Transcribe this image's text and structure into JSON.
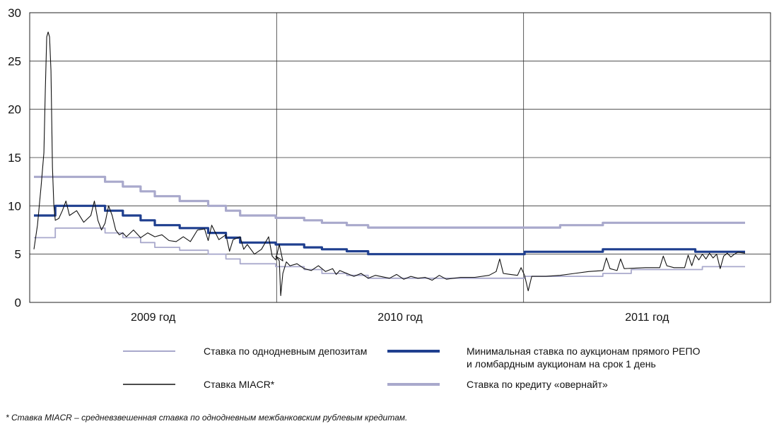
{
  "chart_data": {
    "type": "line",
    "ylim": [
      0,
      30
    ],
    "yticks": [
      0,
      5,
      10,
      15,
      20,
      25,
      30
    ],
    "year_labels": [
      "2009 год",
      "2010 год",
      "2011 год"
    ],
    "grid": true,
    "legend": [
      "Ставка по однодневным депозитам",
      "Минимальная ставка по аукционам прямого РЕПО и ломбардным аукционам на срок 1 день",
      "Ставка MIACR*",
      "Ставка по кредиту «овернайт»"
    ],
    "series": [
      {
        "name": "Ставка по однодневным депозитам",
        "color": "#a9a9cc",
        "points": [
          [
            0.0,
            6.7
          ],
          [
            0.03,
            6.7
          ],
          [
            0.03,
            7.7
          ],
          [
            0.1,
            7.7
          ],
          [
            0.1,
            7.2
          ],
          [
            0.125,
            7.2
          ],
          [
            0.125,
            6.7
          ],
          [
            0.15,
            6.7
          ],
          [
            0.15,
            6.2
          ],
          [
            0.17,
            6.2
          ],
          [
            0.17,
            5.7
          ],
          [
            0.205,
            5.7
          ],
          [
            0.205,
            5.4
          ],
          [
            0.245,
            5.4
          ],
          [
            0.245,
            5.0
          ],
          [
            0.27,
            5.0
          ],
          [
            0.27,
            4.5
          ],
          [
            0.29,
            4.5
          ],
          [
            0.29,
            4.0
          ],
          [
            0.34,
            4.0
          ],
          [
            0.34,
            3.7
          ],
          [
            0.38,
            3.7
          ],
          [
            0.38,
            3.4
          ],
          [
            0.405,
            3.4
          ],
          [
            0.405,
            3.0
          ],
          [
            0.44,
            3.0
          ],
          [
            0.44,
            2.8
          ],
          [
            0.47,
            2.8
          ],
          [
            0.47,
            2.5
          ],
          [
            0.69,
            2.5
          ],
          [
            0.69,
            2.7
          ],
          [
            0.8,
            2.7
          ],
          [
            0.8,
            3.0
          ],
          [
            0.84,
            3.0
          ],
          [
            0.84,
            3.4
          ],
          [
            0.94,
            3.4
          ],
          [
            0.94,
            3.7
          ],
          [
            1.0,
            3.7
          ]
        ]
      },
      {
        "name": "Минимальная ставка по аукционам прямого РЕПО и ломбардным аукционам на срок 1 день",
        "color": "#1f3f8f",
        "points": [
          [
            0.0,
            9.0
          ],
          [
            0.03,
            9.0
          ],
          [
            0.03,
            10.0
          ],
          [
            0.1,
            10.0
          ],
          [
            0.1,
            9.5
          ],
          [
            0.125,
            9.5
          ],
          [
            0.125,
            9.0
          ],
          [
            0.15,
            9.0
          ],
          [
            0.15,
            8.5
          ],
          [
            0.17,
            8.5
          ],
          [
            0.17,
            8.0
          ],
          [
            0.205,
            8.0
          ],
          [
            0.205,
            7.7
          ],
          [
            0.245,
            7.7
          ],
          [
            0.245,
            7.2
          ],
          [
            0.27,
            7.2
          ],
          [
            0.27,
            6.7
          ],
          [
            0.29,
            6.7
          ],
          [
            0.29,
            6.2
          ],
          [
            0.34,
            6.2
          ],
          [
            0.34,
            6.0
          ],
          [
            0.38,
            6.0
          ],
          [
            0.38,
            5.7
          ],
          [
            0.405,
            5.7
          ],
          [
            0.405,
            5.5
          ],
          [
            0.44,
            5.5
          ],
          [
            0.44,
            5.3
          ],
          [
            0.47,
            5.3
          ],
          [
            0.47,
            5.0
          ],
          [
            0.69,
            5.0
          ],
          [
            0.69,
            5.25
          ],
          [
            0.8,
            5.25
          ],
          [
            0.8,
            5.5
          ],
          [
            0.93,
            5.5
          ],
          [
            0.93,
            5.25
          ],
          [
            1.0,
            5.25
          ]
        ]
      },
      {
        "name": "Ставка MIACR*",
        "color": "#111111",
        "points": [
          [
            0.0,
            5.5
          ],
          [
            0.005,
            8.0
          ],
          [
            0.01,
            12.0
          ],
          [
            0.014,
            15.5
          ],
          [
            0.016,
            22.0
          ],
          [
            0.018,
            27.5
          ],
          [
            0.02,
            28.0
          ],
          [
            0.022,
            27.5
          ],
          [
            0.024,
            24.0
          ],
          [
            0.026,
            14.0
          ],
          [
            0.028,
            10.0
          ],
          [
            0.03,
            8.5
          ],
          [
            0.035,
            8.7
          ],
          [
            0.04,
            9.5
          ],
          [
            0.045,
            10.5
          ],
          [
            0.05,
            9.0
          ],
          [
            0.06,
            9.5
          ],
          [
            0.07,
            8.3
          ],
          [
            0.08,
            9.0
          ],
          [
            0.085,
            10.5
          ],
          [
            0.09,
            8.5
          ],
          [
            0.095,
            7.5
          ],
          [
            0.1,
            8.2
          ],
          [
            0.105,
            10.0
          ],
          [
            0.11,
            9.0
          ],
          [
            0.115,
            7.5
          ],
          [
            0.12,
            7.0
          ],
          [
            0.125,
            7.2
          ],
          [
            0.13,
            6.8
          ],
          [
            0.14,
            7.5
          ],
          [
            0.15,
            6.7
          ],
          [
            0.16,
            7.2
          ],
          [
            0.17,
            6.8
          ],
          [
            0.18,
            7.0
          ],
          [
            0.19,
            6.4
          ],
          [
            0.2,
            6.3
          ],
          [
            0.21,
            6.8
          ],
          [
            0.22,
            6.3
          ],
          [
            0.23,
            7.5
          ],
          [
            0.24,
            7.6
          ],
          [
            0.245,
            6.4
          ],
          [
            0.25,
            8.0
          ],
          [
            0.26,
            6.5
          ],
          [
            0.27,
            7.0
          ],
          [
            0.275,
            5.3
          ],
          [
            0.28,
            6.5
          ],
          [
            0.29,
            6.8
          ],
          [
            0.295,
            5.5
          ],
          [
            0.3,
            6.0
          ],
          [
            0.31,
            5.0
          ],
          [
            0.32,
            5.5
          ],
          [
            0.33,
            6.8
          ],
          [
            0.335,
            4.8
          ],
          [
            0.34,
            4.4
          ],
          [
            0.345,
            6.0
          ],
          [
            0.35,
            4.3
          ],
          [
            0.34,
            4.8
          ],
          [
            0.345,
            4.3
          ],
          [
            0.347,
            0.7
          ],
          [
            0.35,
            3.0
          ],
          [
            0.355,
            4.2
          ],
          [
            0.36,
            3.8
          ],
          [
            0.37,
            4.0
          ],
          [
            0.38,
            3.5
          ],
          [
            0.39,
            3.3
          ],
          [
            0.4,
            3.8
          ],
          [
            0.41,
            3.2
          ],
          [
            0.42,
            3.5
          ],
          [
            0.425,
            2.9
          ],
          [
            0.43,
            3.3
          ],
          [
            0.44,
            3.0
          ],
          [
            0.45,
            2.7
          ],
          [
            0.46,
            3.0
          ],
          [
            0.47,
            2.5
          ],
          [
            0.48,
            2.8
          ],
          [
            0.5,
            2.5
          ],
          [
            0.51,
            2.9
          ],
          [
            0.52,
            2.4
          ],
          [
            0.53,
            2.7
          ],
          [
            0.54,
            2.5
          ],
          [
            0.55,
            2.6
          ],
          [
            0.56,
            2.3
          ],
          [
            0.57,
            2.8
          ],
          [
            0.58,
            2.4
          ],
          [
            0.6,
            2.6
          ],
          [
            0.62,
            2.6
          ],
          [
            0.64,
            2.8
          ],
          [
            0.65,
            3.2
          ],
          [
            0.655,
            4.5
          ],
          [
            0.66,
            3.0
          ],
          [
            0.67,
            2.9
          ],
          [
            0.68,
            2.8
          ],
          [
            0.685,
            3.6
          ],
          [
            0.69,
            2.8
          ],
          [
            0.695,
            1.2
          ],
          [
            0.7,
            2.7
          ],
          [
            0.72,
            2.7
          ],
          [
            0.74,
            2.8
          ],
          [
            0.76,
            3.0
          ],
          [
            0.78,
            3.2
          ],
          [
            0.8,
            3.3
          ],
          [
            0.805,
            4.6
          ],
          [
            0.81,
            3.5
          ],
          [
            0.82,
            3.3
          ],
          [
            0.825,
            4.5
          ],
          [
            0.83,
            3.5
          ],
          [
            0.86,
            3.6
          ],
          [
            0.88,
            3.6
          ],
          [
            0.885,
            4.8
          ],
          [
            0.89,
            3.8
          ],
          [
            0.9,
            3.6
          ],
          [
            0.915,
            3.6
          ],
          [
            0.92,
            4.9
          ],
          [
            0.925,
            3.8
          ],
          [
            0.93,
            4.9
          ],
          [
            0.935,
            4.4
          ],
          [
            0.94,
            5.0
          ],
          [
            0.945,
            4.5
          ],
          [
            0.95,
            5.1
          ],
          [
            0.955,
            4.6
          ],
          [
            0.96,
            5.0
          ],
          [
            0.965,
            3.5
          ],
          [
            0.97,
            4.8
          ],
          [
            0.975,
            5.1
          ],
          [
            0.98,
            4.7
          ],
          [
            0.985,
            5.0
          ],
          [
            0.99,
            5.2
          ],
          [
            1.0,
            5.1
          ]
        ]
      },
      {
        "name": "Ставка по кредиту «овернайт»",
        "color": "#a9a9cc",
        "points": [
          [
            0.0,
            13.0
          ],
          [
            0.1,
            13.0
          ],
          [
            0.1,
            12.5
          ],
          [
            0.125,
            12.5
          ],
          [
            0.125,
            12.0
          ],
          [
            0.15,
            12.0
          ],
          [
            0.15,
            11.5
          ],
          [
            0.17,
            11.5
          ],
          [
            0.17,
            11.0
          ],
          [
            0.205,
            11.0
          ],
          [
            0.205,
            10.5
          ],
          [
            0.245,
            10.5
          ],
          [
            0.245,
            10.0
          ],
          [
            0.27,
            10.0
          ],
          [
            0.27,
            9.5
          ],
          [
            0.29,
            9.5
          ],
          [
            0.29,
            9.0
          ],
          [
            0.34,
            9.0
          ],
          [
            0.34,
            8.75
          ],
          [
            0.38,
            8.75
          ],
          [
            0.38,
            8.5
          ],
          [
            0.405,
            8.5
          ],
          [
            0.405,
            8.25
          ],
          [
            0.44,
            8.25
          ],
          [
            0.44,
            8.0
          ],
          [
            0.47,
            8.0
          ],
          [
            0.47,
            7.75
          ],
          [
            0.74,
            7.75
          ],
          [
            0.74,
            8.0
          ],
          [
            0.8,
            8.0
          ],
          [
            0.8,
            8.25
          ],
          [
            1.0,
            8.25
          ]
        ]
      }
    ]
  },
  "footnote": "* Ставка MIACR – средневзвешенная ставка по однодневным межбанковским рублевым кредитам."
}
